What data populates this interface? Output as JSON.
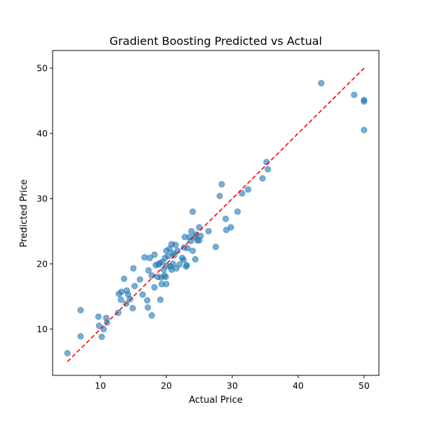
{
  "chart_data": {
    "type": "scatter",
    "title": "Gradient Boosting Predicted vs Actual",
    "xlabel": "Actual Price",
    "ylabel": "Predicted Price",
    "xlim": [
      2.75,
      52.25
    ],
    "ylim": [
      2.9,
      52.7
    ],
    "xticks": [
      10,
      20,
      30,
      40,
      50
    ],
    "yticks": [
      10,
      20,
      30,
      40,
      50
    ],
    "grid": false,
    "point_color": "#1f77b4",
    "point_alpha": 0.6,
    "reference_line": {
      "x": [
        5,
        50
      ],
      "y": [
        5,
        50
      ],
      "color": "#ff0000",
      "style": "dashed"
    },
    "points": [
      [
        5.0,
        6.3
      ],
      [
        7.0,
        12.9
      ],
      [
        7.0,
        8.9
      ],
      [
        9.7,
        11.9
      ],
      [
        9.8,
        10.5
      ],
      [
        10.2,
        8.8
      ],
      [
        10.5,
        10.0
      ],
      [
        10.9,
        11.7
      ],
      [
        11.0,
        11.0
      ],
      [
        12.7,
        12.5
      ],
      [
        12.8,
        15.4
      ],
      [
        13.1,
        14.5
      ],
      [
        13.2,
        15.7
      ],
      [
        13.6,
        17.7
      ],
      [
        13.9,
        13.9
      ],
      [
        14.0,
        15.9
      ],
      [
        14.2,
        15.3
      ],
      [
        14.5,
        14.6
      ],
      [
        14.9,
        13.2
      ],
      [
        15.0,
        19.3
      ],
      [
        15.2,
        16.6
      ],
      [
        16.0,
        17.6
      ],
      [
        16.4,
        15.3
      ],
      [
        16.7,
        21.0
      ],
      [
        17.1,
        14.4
      ],
      [
        17.2,
        13.3
      ],
      [
        17.3,
        19.0
      ],
      [
        17.5,
        20.9
      ],
      [
        17.8,
        18.2
      ],
      [
        17.8,
        12.1
      ],
      [
        18.2,
        21.4
      ],
      [
        18.2,
        16.4
      ],
      [
        18.4,
        19.8
      ],
      [
        18.7,
        18.0
      ],
      [
        18.8,
        19.9
      ],
      [
        19.0,
        20.1
      ],
      [
        19.1,
        14.5
      ],
      [
        19.2,
        17.9
      ],
      [
        19.3,
        16.9
      ],
      [
        19.4,
        20.3
      ],
      [
        19.6,
        19.1
      ],
      [
        19.7,
        18.2
      ],
      [
        19.8,
        20.9
      ],
      [
        19.9,
        18.0
      ],
      [
        20.0,
        16.9
      ],
      [
        20.0,
        22.0
      ],
      [
        20.1,
        19.7
      ],
      [
        20.3,
        21.2
      ],
      [
        20.5,
        22.3
      ],
      [
        20.6,
        19.6
      ],
      [
        20.8,
        23.0
      ],
      [
        20.8,
        19.1
      ],
      [
        21.0,
        21.6
      ],
      [
        21.0,
        20.0
      ],
      [
        21.2,
        21.3
      ],
      [
        21.4,
        22.9
      ],
      [
        21.5,
        19.3
      ],
      [
        21.7,
        22.0
      ],
      [
        22.0,
        19.9
      ],
      [
        22.4,
        20.9
      ],
      [
        22.6,
        20.6
      ],
      [
        22.7,
        22.5
      ],
      [
        22.8,
        24.1
      ],
      [
        23.0,
        19.6
      ],
      [
        23.1,
        19.8
      ],
      [
        23.2,
        22.4
      ],
      [
        23.5,
        24.1
      ],
      [
        23.7,
        23.5
      ],
      [
        23.8,
        25.0
      ],
      [
        24.0,
        28.0
      ],
      [
        24.0,
        22.0
      ],
      [
        24.3,
        24.1
      ],
      [
        24.4,
        20.7
      ],
      [
        24.5,
        24.5
      ],
      [
        24.7,
        23.6
      ],
      [
        25.0,
        23.6
      ],
      [
        25.0,
        25.6
      ],
      [
        25.2,
        24.3
      ],
      [
        26.4,
        25.0
      ],
      [
        27.5,
        22.6
      ],
      [
        28.1,
        30.4
      ],
      [
        28.4,
        32.2
      ],
      [
        29.0,
        26.9
      ],
      [
        29.1,
        25.2
      ],
      [
        29.8,
        25.6
      ],
      [
        30.8,
        28.0
      ],
      [
        31.5,
        30.8
      ],
      [
        32.4,
        31.4
      ],
      [
        34.6,
        33.1
      ],
      [
        35.2,
        35.6
      ],
      [
        35.4,
        34.5
      ],
      [
        43.5,
        47.7
      ],
      [
        48.5,
        45.9
      ],
      [
        50.0,
        45.1
      ],
      [
        50.0,
        44.9
      ],
      [
        50.0,
        40.5
      ]
    ]
  }
}
